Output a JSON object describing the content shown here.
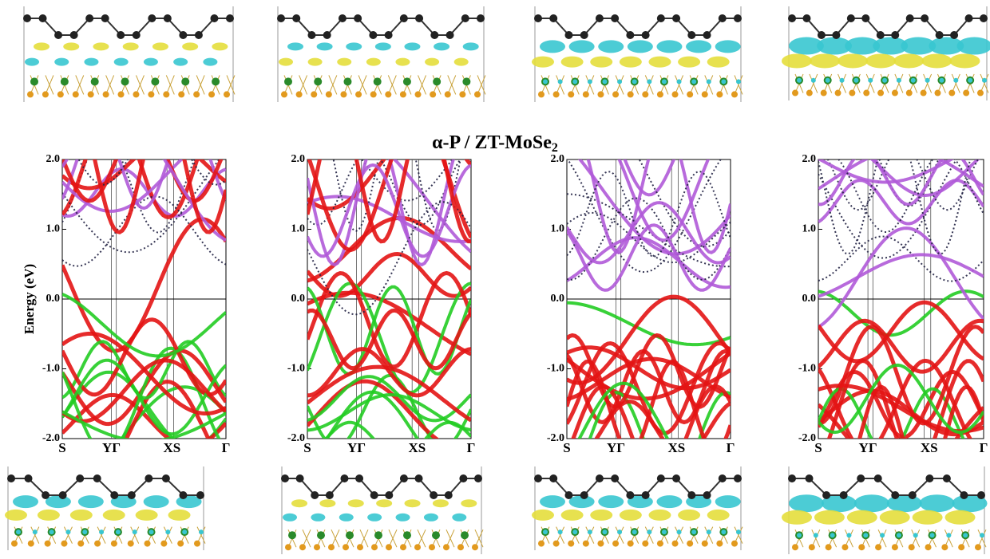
{
  "figure": {
    "title": {
      "text": "α-P / ZT-MoSe",
      "subscript": "2"
    },
    "band_axes": {
      "ylabel": "Energy (eV)",
      "ylim": [
        -2,
        2
      ],
      "yticks": [
        {
          "value": 2,
          "label": "2.0"
        },
        {
          "value": 1,
          "label": "1.0"
        },
        {
          "value": 0,
          "label": "0.0"
        },
        {
          "value": -1,
          "label": "-1.0"
        },
        {
          "value": -2,
          "label": "-2.0"
        }
      ],
      "xlabels": [
        "S",
        "YΓ",
        "XS",
        "Γ"
      ]
    }
  }
}
